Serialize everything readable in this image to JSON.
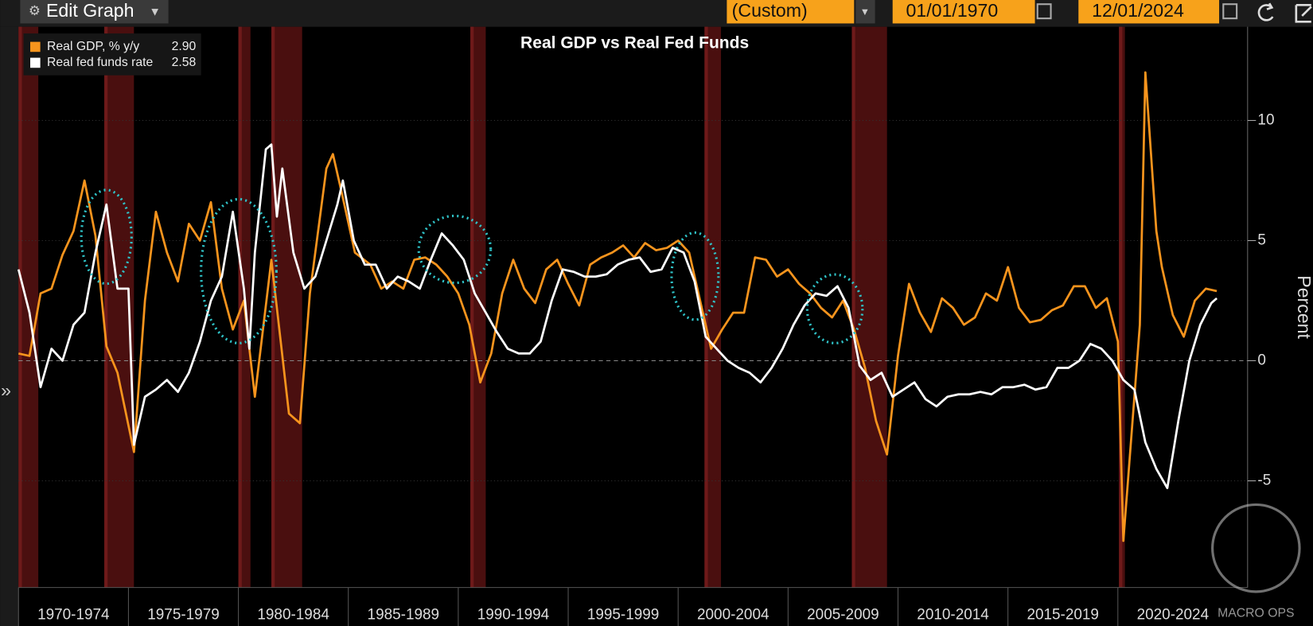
{
  "toolbar": {
    "edit_button": "Edit Graph",
    "period": "(Custom)",
    "start_date": "01/01/1970",
    "end_date": "12/01/2024"
  },
  "watermark": "MACRO OPS",
  "chart_data": {
    "type": "line",
    "title": "Real GDP vs Real Fed Funds",
    "y_label": "Percent",
    "xlim": [
      1970,
      2025.9
    ],
    "ylim": [
      -9.44,
      13.9
    ],
    "yticks": [
      -5,
      0,
      5,
      10
    ],
    "grid": true,
    "legend": "top-left",
    "xticks": [
      {
        "value": 1970,
        "label": "1970-1974"
      },
      {
        "value": 1975,
        "label": "1975-1979"
      },
      {
        "value": 1980,
        "label": "1980-1984"
      },
      {
        "value": 1985,
        "label": "1985-1989"
      },
      {
        "value": 1990,
        "label": "1990-1994"
      },
      {
        "value": 1995,
        "label": "1995-1999"
      },
      {
        "value": 2000,
        "label": "2000-2004"
      },
      {
        "value": 2005,
        "label": "2005-2009"
      },
      {
        "value": 2010,
        "label": "2010-2014"
      },
      {
        "value": 2015,
        "label": "2015-2019"
      },
      {
        "value": 2020,
        "label": "2020-2024"
      }
    ],
    "recessions": [
      [
        1970.0,
        1970.9
      ],
      [
        1973.9,
        1975.25
      ],
      [
        1980.0,
        1980.55
      ],
      [
        1981.5,
        1982.9
      ],
      [
        1990.55,
        1991.25
      ],
      [
        2001.2,
        2001.95
      ],
      [
        2007.9,
        2009.5
      ],
      [
        2020.05,
        2020.32
      ]
    ],
    "series": [
      {
        "name": "Real GDP, % y/y",
        "legend_value": "2.90",
        "color": "#f7941d",
        "x": [
          1970.0,
          1970.5,
          1971.0,
          1971.5,
          1972.0,
          1972.5,
          1973.0,
          1973.5,
          1974.0,
          1974.5,
          1975.25,
          1975.75,
          1976.25,
          1976.75,
          1977.25,
          1977.75,
          1978.25,
          1978.75,
          1979.25,
          1979.75,
          1980.25,
          1980.75,
          1981.5,
          1982.3,
          1982.8,
          1983.25,
          1984.0,
          1984.3,
          1984.7,
          1985.3,
          1986.0,
          1986.5,
          1987.0,
          1987.5,
          1988.0,
          1988.5,
          1989.0,
          1989.5,
          1990.0,
          1990.5,
          1991.0,
          1991.5,
          1992.0,
          1992.5,
          1993.0,
          1993.5,
          1994.0,
          1994.5,
          1995.0,
          1995.5,
          1996.0,
          1996.5,
          1997.0,
          1997.5,
          1998.0,
          1998.5,
          1999.0,
          1999.5,
          2000.0,
          2000.5,
          2001.0,
          2001.5,
          2002.0,
          2002.5,
          2003.0,
          2003.5,
          2004.0,
          2004.5,
          2005.0,
          2005.5,
          2006.0,
          2006.5,
          2007.0,
          2007.5,
          2008.0,
          2008.5,
          2009.0,
          2009.5,
          2010.0,
          2010.5,
          2011.0,
          2011.5,
          2012.0,
          2012.5,
          2013.0,
          2013.5,
          2014.0,
          2014.5,
          2015.0,
          2015.5,
          2016.0,
          2016.5,
          2017.0,
          2017.5,
          2018.0,
          2018.5,
          2019.0,
          2019.5,
          2020.0,
          2020.25,
          2020.75,
          2021.0,
          2021.25,
          2021.75,
          2022.0,
          2022.5,
          2023.0,
          2023.5,
          2024.0,
          2024.5
        ],
        "values": [
          0.3,
          0.2,
          2.8,
          3.0,
          4.4,
          5.4,
          7.5,
          5.2,
          0.6,
          -0.5,
          -3.8,
          2.5,
          6.2,
          4.5,
          3.3,
          5.7,
          5.0,
          6.6,
          3.0,
          1.3,
          2.5,
          -1.5,
          4.2,
          -2.2,
          -2.6,
          2.8,
          8.0,
          8.6,
          7.0,
          4.5,
          4.0,
          3.0,
          3.3,
          3.0,
          4.2,
          4.3,
          4.0,
          3.5,
          2.8,
          1.5,
          -0.9,
          0.3,
          2.8,
          4.2,
          3.0,
          2.4,
          3.8,
          4.2,
          3.2,
          2.3,
          4.0,
          4.3,
          4.5,
          4.8,
          4.3,
          4.9,
          4.6,
          4.7,
          5.0,
          4.5,
          2.5,
          0.5,
          1.3,
          2.0,
          2.0,
          4.3,
          4.2,
          3.5,
          3.8,
          3.2,
          2.8,
          2.2,
          1.8,
          2.5,
          1.3,
          -0.3,
          -2.5,
          -3.9,
          0.2,
          3.2,
          2.0,
          1.2,
          2.6,
          2.2,
          1.5,
          1.8,
          2.8,
          2.5,
          3.9,
          2.2,
          1.6,
          1.7,
          2.1,
          2.3,
          3.1,
          3.1,
          2.2,
          2.6,
          0.8,
          -7.5,
          -1.5,
          1.5,
          12.0,
          5.4,
          3.9,
          1.9,
          1.0,
          2.5,
          3.0,
          2.9
        ]
      },
      {
        "name": "Real fed funds rate",
        "legend_value": "2.58",
        "color": "#ffffff",
        "x": [
          1970.0,
          1970.5,
          1971.0,
          1971.5,
          1972.0,
          1972.5,
          1973.0,
          1973.5,
          1974.0,
          1974.5,
          1975.0,
          1975.25,
          1975.75,
          1976.25,
          1976.75,
          1977.25,
          1977.75,
          1978.25,
          1978.75,
          1979.25,
          1979.75,
          1980.25,
          1980.5,
          1980.75,
          1981.25,
          1981.5,
          1981.75,
          1982.0,
          1982.5,
          1983.0,
          1983.5,
          1984.0,
          1984.5,
          1984.75,
          1985.25,
          1985.75,
          1986.25,
          1986.75,
          1987.25,
          1987.75,
          1988.25,
          1988.75,
          1989.25,
          1989.75,
          1990.25,
          1990.75,
          1991.25,
          1991.75,
          1992.25,
          1992.75,
          1993.25,
          1993.75,
          1994.25,
          1994.75,
          1995.25,
          1995.75,
          1996.25,
          1996.75,
          1997.25,
          1997.75,
          1998.25,
          1998.75,
          1999.25,
          1999.75,
          2000.25,
          2000.75,
          2001.25,
          2001.75,
          2002.25,
          2002.75,
          2003.25,
          2003.75,
          2004.25,
          2004.75,
          2005.25,
          2005.75,
          2006.25,
          2006.75,
          2007.25,
          2007.75,
          2008.25,
          2008.75,
          2009.25,
          2009.75,
          2010.25,
          2010.75,
          2011.25,
          2011.75,
          2012.25,
          2012.75,
          2013.25,
          2013.75,
          2014.25,
          2014.75,
          2015.25,
          2015.75,
          2016.25,
          2016.75,
          2017.25,
          2017.75,
          2018.25,
          2018.75,
          2019.25,
          2019.75,
          2020.25,
          2020.75,
          2021.25,
          2021.75,
          2022.25,
          2022.75,
          2023.25,
          2023.75,
          2024.25,
          2024.5
        ],
        "values": [
          3.8,
          2.0,
          -1.1,
          0.5,
          0.0,
          1.5,
          2.0,
          4.5,
          6.5,
          3.0,
          3.0,
          -3.5,
          -1.5,
          -1.2,
          -0.8,
          -1.3,
          -0.5,
          0.8,
          2.5,
          3.5,
          6.2,
          3.0,
          0.5,
          4.5,
          8.8,
          9.0,
          6.0,
          8.0,
          4.5,
          3.0,
          3.5,
          5.0,
          6.5,
          7.5,
          5.0,
          4.0,
          4.0,
          3.0,
          3.5,
          3.3,
          3.0,
          4.2,
          5.3,
          4.8,
          4.2,
          2.8,
          2.0,
          1.2,
          0.5,
          0.3,
          0.3,
          0.8,
          2.5,
          3.8,
          3.7,
          3.5,
          3.5,
          3.6,
          4.0,
          4.2,
          4.3,
          3.7,
          3.8,
          4.7,
          4.5,
          3.3,
          1.0,
          0.5,
          0.0,
          -0.3,
          -0.5,
          -0.9,
          -0.3,
          0.5,
          1.5,
          2.3,
          2.8,
          2.7,
          3.1,
          2.2,
          -0.2,
          -0.8,
          -0.5,
          -1.5,
          -1.2,
          -0.9,
          -1.6,
          -1.9,
          -1.5,
          -1.4,
          -1.4,
          -1.3,
          -1.4,
          -1.1,
          -1.1,
          -1.0,
          -1.2,
          -1.1,
          -0.3,
          -0.3,
          0.0,
          0.7,
          0.5,
          0.0,
          -0.8,
          -1.2,
          -3.4,
          -4.5,
          -5.3,
          -2.5,
          0.0,
          1.5,
          2.4,
          2.6
        ]
      }
    ]
  }
}
